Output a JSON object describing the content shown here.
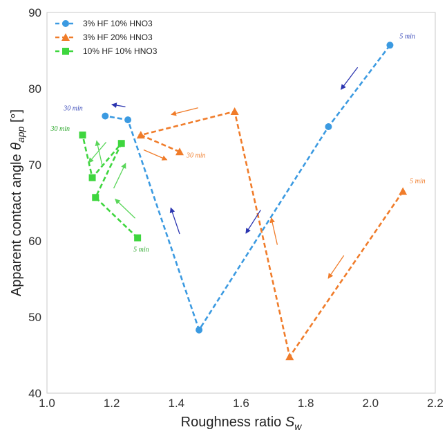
{
  "chart_data": {
    "type": "line",
    "xlabel": "Roughness ratio",
    "xlabel_symbol": "S",
    "xlabel_sub": "w",
    "ylabel": "Apparent contact angle",
    "ylabel_symbol": "θ",
    "ylabel_sub": "app",
    "ylabel_unit": "[°]",
    "xlim": [
      1.0,
      2.2
    ],
    "ylim": [
      40,
      90
    ],
    "xticks": [
      "1.0",
      "1.2",
      "1.4",
      "1.6",
      "1.8",
      "2.0",
      "2.2"
    ],
    "yticks": [
      "40",
      "50",
      "60",
      "70",
      "80",
      "90"
    ],
    "grid": false,
    "legend_position": "top-left",
    "series": [
      {
        "name": "3% HF 10% HNO3",
        "color": "#3b9ae1",
        "marker": "circle",
        "x": [
          2.06,
          1.87,
          1.47,
          1.25,
          1.18
        ],
        "y": [
          85.7,
          75.0,
          48.3,
          75.9,
          76.4
        ]
      },
      {
        "name": "3% HF 20% HNO3",
        "color": "#f07c2a",
        "marker": "triangle",
        "x": [
          2.1,
          1.75,
          1.58,
          1.29,
          1.41
        ],
        "y": [
          66.5,
          44.8,
          77.0,
          73.9,
          71.7
        ]
      },
      {
        "name": "10% HF 10% HNO3",
        "color": "#3ed63e",
        "marker": "square",
        "x": [
          1.28,
          1.15,
          1.23,
          1.14,
          1.11
        ],
        "y": [
          60.4,
          65.7,
          72.8,
          68.3,
          73.9
        ]
      }
    ],
    "annotations": [
      {
        "text": "5 min",
        "color": "#3848b8",
        "x": 2.06,
        "y": 85.7
      },
      {
        "text": "30 min",
        "color": "#3848b8",
        "x": 1.18,
        "y": 76.4
      },
      {
        "text": "5 min",
        "color": "#f07c2a",
        "x": 2.1,
        "y": 66.5
      },
      {
        "text": "30 min",
        "color": "#f07c2a",
        "x": 1.41,
        "y": 71.7
      },
      {
        "text": "5 min",
        "color": "#2ea82e",
        "x": 1.28,
        "y": 60.4
      },
      {
        "text": "30 min",
        "color": "#2ea82e",
        "x": 1.11,
        "y": 73.9
      }
    ],
    "arrow_colors": {
      "blue": "#2b35b0",
      "orange": "#f07c2a",
      "green": "#5ad65a"
    }
  }
}
